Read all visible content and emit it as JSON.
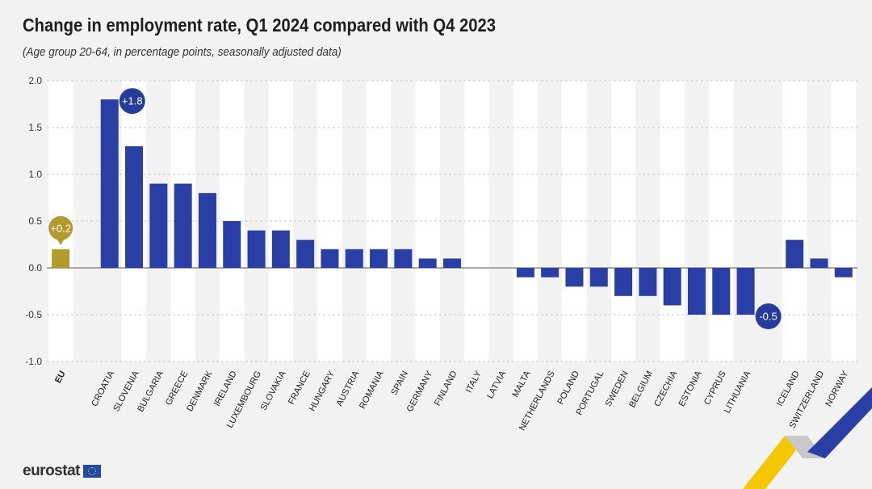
{
  "header": {
    "title": "Change in employment rate, Q1 2024 compared with Q4 2023",
    "subtitle": "(Age group 20-64, in percentage points, seasonally adjusted data)"
  },
  "footer": {
    "logo_text": "eurostat"
  },
  "colors": {
    "bar": "#2a3fa6",
    "eu_bar": "#b39a2d",
    "band": "#ffffff",
    "background": "#f2f2f2",
    "callout": "#263c9a"
  },
  "chart_data": {
    "type": "bar",
    "title": "Change in employment rate, Q1 2024 compared with Q4 2023",
    "subtitle": "(Age group 20-64, in percentage points, seasonally adjusted data)",
    "xlabel": "",
    "ylabel": "",
    "ylim": [
      -1.0,
      2.0
    ],
    "yticks": [
      "2.0",
      "1.5",
      "1.0",
      "0.5",
      "0.0",
      "-0.5",
      "-1.0"
    ],
    "grid": true,
    "categories": [
      "EU",
      "CROATIA",
      "SLOVENIA",
      "BULGARIA",
      "GREECE",
      "DENMARK",
      "IRELAND",
      "LUXEMBOURG",
      "SLOVAKIA",
      "FRANCE",
      "HUNGARY",
      "AUSTRIA",
      "ROMANIA",
      "SPAIN",
      "GERMANY",
      "FINLAND",
      "ITALY",
      "LATVIA",
      "MALTA",
      "NETHERLANDS",
      "POLAND",
      "PORTUGAL",
      "SWEDEN",
      "BELGIUM",
      "CZECHIA",
      "ESTONIA",
      "CYPRUS",
      "LITHUANIA",
      "ICELAND",
      "SWITZERLAND",
      "NORWAY"
    ],
    "values": [
      0.2,
      1.8,
      1.3,
      0.9,
      0.9,
      0.8,
      0.5,
      0.4,
      0.4,
      0.3,
      0.2,
      0.2,
      0.2,
      0.2,
      0.1,
      0.1,
      0.0,
      0.0,
      -0.1,
      -0.1,
      -0.2,
      -0.2,
      -0.3,
      -0.3,
      -0.4,
      -0.5,
      -0.5,
      -0.5,
      0.3,
      0.1,
      -0.1
    ],
    "annotations": [
      {
        "category": "EU",
        "text": "+0.2"
      },
      {
        "category": "CROATIA",
        "text": "+1.8"
      },
      {
        "category": "LITHUANIA",
        "text": "-0.5"
      }
    ]
  }
}
